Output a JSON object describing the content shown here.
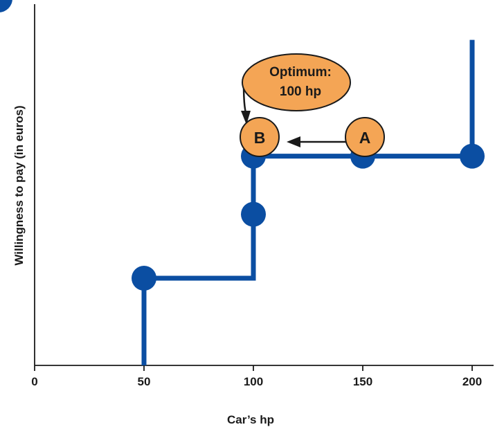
{
  "colors": {
    "line": "#0b4ea2",
    "marker": "#0b4ea2",
    "bubble_fill": "#f4a555",
    "bubble_stroke": "#1a1a1a",
    "axis": "#1a1a1a",
    "corner_badge": "#0b4ea2"
  },
  "chart_data": {
    "type": "line",
    "xlabel": "Car’s hp",
    "ylabel": "Willingness to pay (in euros)",
    "xlim": [
      0,
      210
    ],
    "ylim": [
      0,
      6
    ],
    "x_ticks": [
      {
        "value": 0,
        "label": "0"
      },
      {
        "value": 50,
        "label": "50"
      },
      {
        "value": 100,
        "label": "100"
      },
      {
        "value": 150,
        "label": "150"
      },
      {
        "value": 200,
        "label": "200"
      }
    ],
    "grid": false,
    "series": [
      {
        "step_line": [
          [
            50,
            0
          ],
          [
            50,
            1.5
          ],
          [
            100,
            1.5
          ],
          [
            100,
            3.6
          ],
          [
            200,
            3.6
          ],
          [
            200,
            5.6
          ]
        ],
        "markers": [
          {
            "x": 50,
            "y": 1.5
          },
          {
            "x": 100,
            "y": 2.6
          },
          {
            "x": 100,
            "y": 3.6
          },
          {
            "x": 150,
            "y": 3.6
          },
          {
            "x": 200,
            "y": 3.6
          }
        ]
      }
    ],
    "annotations": {
      "point_a": {
        "label": "A",
        "x": 152,
        "y": 4.2
      },
      "point_b": {
        "label": "B",
        "x": 102,
        "y": 4.2
      },
      "optimum": {
        "line1": "Optimum:",
        "line2": "100 hp",
        "x": 115,
        "y": 5.2
      }
    }
  }
}
